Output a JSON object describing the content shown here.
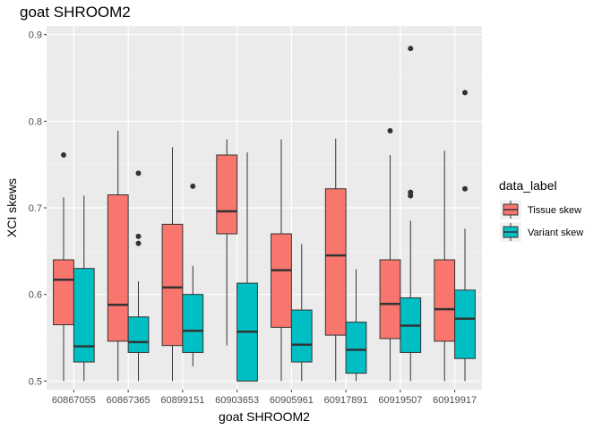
{
  "chart_data": {
    "type": "boxplot",
    "title": "goat SHROOM2",
    "xlabel": "goat SHROOM2",
    "ylabel": "XCI skews",
    "ylim": [
      0.49,
      0.91
    ],
    "yticks": [
      "0.5",
      "0.6",
      "0.7",
      "0.8",
      "0.9"
    ],
    "ytick_values": [
      0.5,
      0.6,
      0.7,
      0.8,
      0.9
    ],
    "categories": [
      "60867055",
      "60867365",
      "60899151",
      "60903653",
      "60905961",
      "60917891",
      "60919507",
      "60919917"
    ],
    "legend": {
      "title": "data_label",
      "position": "right"
    },
    "series": [
      {
        "name": "Tissue skew",
        "color": "#F8766D",
        "boxes": [
          {
            "min": 0.5,
            "q1": 0.565,
            "median": 0.617,
            "q3": 0.64,
            "max": 0.712,
            "outliers": [
              0.761
            ]
          },
          {
            "min": 0.5,
            "q1": 0.546,
            "median": 0.588,
            "q3": 0.715,
            "max": 0.789,
            "outliers": []
          },
          {
            "min": 0.5,
            "q1": 0.541,
            "median": 0.608,
            "q3": 0.681,
            "max": 0.77,
            "outliers": []
          },
          {
            "min": 0.541,
            "q1": 0.67,
            "median": 0.696,
            "q3": 0.761,
            "max": 0.779,
            "outliers": []
          },
          {
            "min": 0.5,
            "q1": 0.562,
            "median": 0.628,
            "q3": 0.67,
            "max": 0.779,
            "outliers": []
          },
          {
            "min": 0.5,
            "q1": 0.553,
            "median": 0.645,
            "q3": 0.722,
            "max": 0.78,
            "outliers": []
          },
          {
            "min": 0.5,
            "q1": 0.549,
            "median": 0.589,
            "q3": 0.64,
            "max": 0.761,
            "outliers": [
              0.789
            ]
          },
          {
            "min": 0.5,
            "q1": 0.546,
            "median": 0.583,
            "q3": 0.64,
            "max": 0.766,
            "outliers": []
          }
        ]
      },
      {
        "name": "Variant skew",
        "color": "#00BFC4",
        "boxes": [
          {
            "min": 0.5,
            "q1": 0.522,
            "median": 0.54,
            "q3": 0.63,
            "max": 0.714,
            "outliers": []
          },
          {
            "min": 0.5,
            "q1": 0.533,
            "median": 0.545,
            "q3": 0.574,
            "max": 0.615,
            "outliers": [
              0.659,
              0.667,
              0.74
            ]
          },
          {
            "min": 0.517,
            "q1": 0.533,
            "median": 0.558,
            "q3": 0.6,
            "max": 0.633,
            "outliers": [
              0.725
            ]
          },
          {
            "min": 0.5,
            "q1": 0.5,
            "median": 0.557,
            "q3": 0.613,
            "max": 0.764,
            "outliers": []
          },
          {
            "min": 0.5,
            "q1": 0.522,
            "median": 0.542,
            "q3": 0.582,
            "max": 0.658,
            "outliers": []
          },
          {
            "min": 0.5,
            "q1": 0.509,
            "median": 0.536,
            "q3": 0.568,
            "max": 0.629,
            "outliers": []
          },
          {
            "min": 0.5,
            "q1": 0.533,
            "median": 0.564,
            "q3": 0.596,
            "max": 0.685,
            "outliers": [
              0.714,
              0.718,
              0.884
            ]
          },
          {
            "min": 0.5,
            "q1": 0.526,
            "median": 0.572,
            "q3": 0.605,
            "max": 0.676,
            "outliers": [
              0.722,
              0.833
            ]
          }
        ]
      }
    ]
  }
}
